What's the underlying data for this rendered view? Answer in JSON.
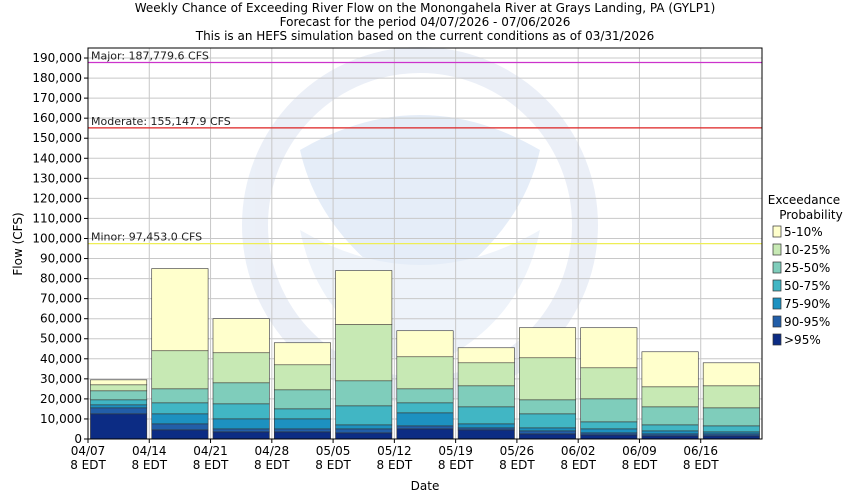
{
  "chart_data": {
    "type": "bar",
    "title": "Weekly Chance of Exceeding River Flow on the Monongahela River at Grays Landing, PA (GYLP1)",
    "subtitle": "Forecast for the period 04/07/2026 - 07/06/2026",
    "subtitle2": "This is an HEFS simulation based on the current conditions as of 03/31/2026",
    "xlabel": "Date",
    "ylabel": "Flow (CFS)",
    "ylim": [
      0,
      195000
    ],
    "yticks": [
      "0",
      "10,000",
      "20,000",
      "30,000",
      "40,000",
      "50,000",
      "60,000",
      "70,000",
      "80,000",
      "90,000",
      "100,000",
      "110,000",
      "120,000",
      "130,000",
      "140,000",
      "150,000",
      "160,000",
      "170,000",
      "180,000",
      "190,000"
    ],
    "xticks": [
      {
        "date": "04/07",
        "tz": "8 EDT"
      },
      {
        "date": "04/14",
        "tz": "8 EDT"
      },
      {
        "date": "04/21",
        "tz": "8 EDT"
      },
      {
        "date": "04/28",
        "tz": "8 EDT"
      },
      {
        "date": "05/05",
        "tz": "8 EDT"
      },
      {
        "date": "05/12",
        "tz": "8 EDT"
      },
      {
        "date": "05/19",
        "tz": "8 EDT"
      },
      {
        "date": "05/26",
        "tz": "8 EDT"
      },
      {
        "date": "06/02",
        "tz": "8 EDT"
      },
      {
        "date": "06/09",
        "tz": "8 EDT"
      },
      {
        "date": "06/16",
        "tz": "8 EDT"
      }
    ],
    "thresholds": [
      {
        "label": "Major: 187,779.6 CFS",
        "value": 187779.6,
        "color": "#cc33cc"
      },
      {
        "label": "Moderate: 155,147.9 CFS",
        "value": 155147.9,
        "color": "#dd2222"
      },
      {
        "label": "Minor: 97,453.0 CFS",
        "value": 97453.0,
        "color": "#eeee55"
      }
    ],
    "legend": {
      "title_line1": "Exceedance",
      "title_line2": "Probability",
      "placement": "right"
    },
    "series": [
      {
        "name": "5-10%",
        "color": "#ffffcc",
        "values": [
          29500,
          85000,
          60000,
          48000,
          84000,
          54000,
          45500,
          55500,
          55500,
          43500,
          38000
        ]
      },
      {
        "name": "10-25%",
        "color": "#c7e9b4",
        "values": [
          27000,
          44000,
          43000,
          37000,
          57000,
          41000,
          38000,
          40500,
          35500,
          26000,
          26500
        ]
      },
      {
        "name": "25-50%",
        "color": "#7fcdbb",
        "values": [
          24000,
          25000,
          28000,
          24500,
          29000,
          25000,
          26500,
          19500,
          20000,
          16000,
          15500
        ]
      },
      {
        "name": "50-75%",
        "color": "#41b6c4",
        "values": [
          19500,
          18000,
          17500,
          15000,
          16500,
          18000,
          16000,
          12500,
          8500,
          7000,
          6500
        ]
      },
      {
        "name": "75-90%",
        "color": "#1d91c0",
        "values": [
          17000,
          12500,
          10000,
          10000,
          7000,
          13000,
          7500,
          5500,
          5000,
          4000,
          3500
        ]
      },
      {
        "name": "90-95%",
        "color": "#225ea8",
        "values": [
          15500,
          7500,
          5000,
          5000,
          5000,
          6500,
          5500,
          4000,
          3000,
          2500,
          2500
        ]
      },
      {
        "name": ">95%",
        "color": "#0c2c84",
        "values": [
          12500,
          4500,
          3500,
          3500,
          3000,
          5000,
          4500,
          2500,
          2000,
          1500,
          1500
        ]
      }
    ]
  }
}
